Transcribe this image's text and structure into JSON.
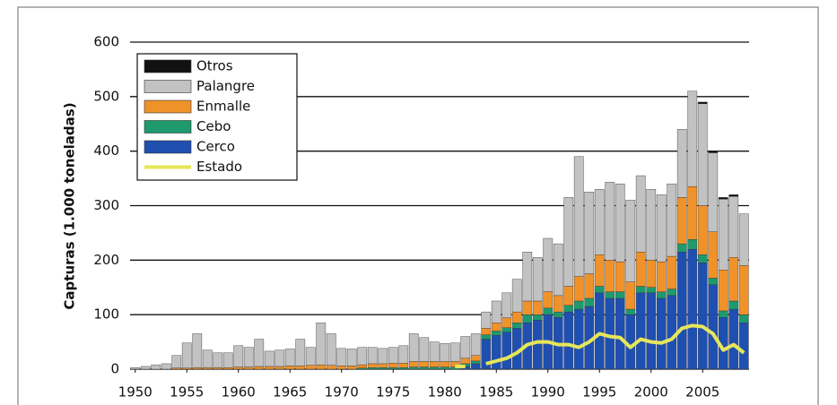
{
  "chart_data": {
    "type": "stacked-bar-line",
    "y_label": "Capturas (1.000 toneladas)",
    "x": [
      1950,
      1951,
      1952,
      1953,
      1954,
      1955,
      1956,
      1957,
      1958,
      1959,
      1960,
      1961,
      1962,
      1963,
      1964,
      1965,
      1966,
      1967,
      1968,
      1969,
      1970,
      1971,
      1972,
      1973,
      1974,
      1975,
      1976,
      1977,
      1978,
      1979,
      1980,
      1981,
      1982,
      1983,
      1984,
      1985,
      1986,
      1987,
      1988,
      1989,
      1990,
      1991,
      1992,
      1993,
      1994,
      1995,
      1996,
      1997,
      1998,
      1999,
      2000,
      2001,
      2002,
      2003,
      2004,
      2005,
      2006,
      2007,
      2008,
      2009
    ],
    "xlim": [
      1949.5,
      2009.5
    ],
    "xticks": [
      1950,
      1955,
      1960,
      1965,
      1970,
      1975,
      1980,
      1985,
      1990,
      1995,
      2000,
      2005
    ],
    "ylim": [
      0,
      600
    ],
    "yticks": [
      0,
      100,
      200,
      300,
      400,
      500,
      600
    ],
    "grid": true,
    "legend": "top-left",
    "series": [
      {
        "name": "Cerco",
        "color": "#1f4fb0",
        "style": "bar",
        "values": [
          0,
          0,
          0,
          0,
          0,
          0,
          0,
          0,
          0,
          0,
          0,
          0,
          0,
          0,
          0,
          0,
          0,
          0,
          0,
          0,
          0,
          0,
          0,
          0,
          0,
          0,
          0,
          0,
          0,
          0,
          0,
          0,
          5,
          10,
          55,
          62,
          68,
          75,
          85,
          90,
          100,
          95,
          105,
          110,
          115,
          140,
          130,
          130,
          100,
          140,
          140,
          130,
          135,
          215,
          220,
          195,
          155,
          95,
          110,
          85
        ]
      },
      {
        "name": "Cebo",
        "color": "#1e9a6e",
        "style": "bar",
        "values": [
          0,
          0,
          0,
          0,
          0,
          0,
          0,
          0,
          0,
          0,
          0,
          0,
          0,
          0,
          0,
          0,
          0,
          0,
          0,
          0,
          0,
          0,
          2,
          3,
          3,
          3,
          3,
          4,
          4,
          4,
          4,
          4,
          5,
          5,
          8,
          8,
          8,
          10,
          15,
          10,
          12,
          10,
          12,
          15,
          15,
          12,
          12,
          12,
          10,
          12,
          10,
          12,
          12,
          15,
          18,
          15,
          12,
          12,
          15,
          15
        ]
      },
      {
        "name": "Enmalle",
        "color": "#f0922a",
        "style": "bar",
        "values": [
          0,
          0,
          0,
          0,
          2,
          2,
          3,
          3,
          3,
          3,
          4,
          4,
          5,
          5,
          5,
          6,
          6,
          7,
          8,
          7,
          6,
          6,
          6,
          7,
          7,
          8,
          8,
          10,
          10,
          10,
          10,
          10,
          10,
          10,
          12,
          15,
          18,
          20,
          25,
          25,
          30,
          30,
          35,
          45,
          45,
          58,
          58,
          55,
          50,
          63,
          50,
          55,
          60,
          85,
          97,
          90,
          85,
          75,
          80,
          90
        ]
      },
      {
        "name": "Palangre",
        "color": "#c2c2c2",
        "style": "bar",
        "values": [
          3,
          5,
          8,
          10,
          23,
          46,
          62,
          32,
          27,
          27,
          39,
          36,
          50,
          28,
          30,
          31,
          49,
          33,
          77,
          58,
          32,
          31,
          32,
          30,
          28,
          29,
          32,
          51,
          44,
          36,
          33,
          34,
          40,
          40,
          30,
          40,
          46,
          60,
          90,
          80,
          98,
          95,
          163,
          220,
          150,
          120,
          143,
          143,
          150,
          140,
          130,
          123,
          133,
          125,
          175,
          187,
          145,
          130,
          112,
          95
        ]
      },
      {
        "name": "Otros",
        "color": "#111111",
        "style": "bar",
        "values": [
          0,
          0,
          0,
          0,
          0,
          0,
          0,
          0,
          0,
          0,
          0,
          0,
          0,
          0,
          0,
          0,
          0,
          0,
          0,
          0,
          0,
          0,
          0,
          0,
          0,
          0,
          0,
          0,
          0,
          0,
          0,
          0,
          0,
          0,
          0,
          0,
          0,
          0,
          0,
          0,
          0,
          0,
          0,
          0,
          0,
          0,
          0,
          0,
          0,
          0,
          0,
          0,
          0,
          0,
          0,
          3,
          3,
          3,
          3,
          0
        ]
      },
      {
        "name": "Estado",
        "color": "#e6e65a",
        "style": "line",
        "values": [
          null,
          null,
          null,
          null,
          null,
          null,
          null,
          null,
          null,
          null,
          null,
          null,
          null,
          null,
          null,
          null,
          null,
          null,
          null,
          null,
          null,
          null,
          null,
          null,
          null,
          null,
          null,
          null,
          null,
          null,
          null,
          5,
          5,
          null,
          10,
          15,
          20,
          30,
          45,
          50,
          50,
          45,
          45,
          40,
          50,
          65,
          60,
          58,
          40,
          55,
          50,
          48,
          55,
          75,
          80,
          78,
          65,
          35,
          45,
          30
        ]
      }
    ]
  }
}
